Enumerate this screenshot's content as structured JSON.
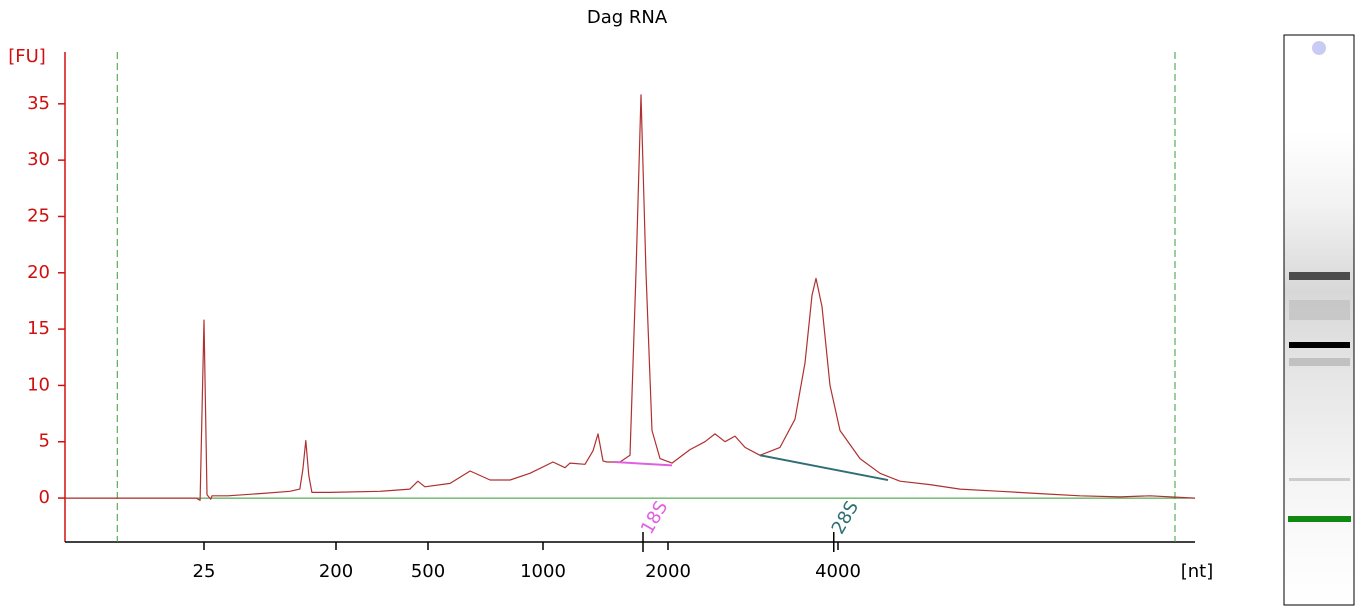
{
  "chart_data": {
    "type": "line",
    "title": "Dag RNA",
    "ylabel": "[FU]",
    "xlabel": "[nt]",
    "xlim": [
      0,
      9000
    ],
    "xticks": [
      25,
      200,
      500,
      1000,
      2000,
      4000
    ],
    "ylim": [
      -3.9,
      39.6
    ],
    "yticks": [
      0,
      5,
      10,
      15,
      20,
      25,
      30,
      35
    ],
    "range_markers": [
      9.4,
      8720
    ],
    "series": [
      {
        "color": "#b03030",
        "x": [
          0,
          9.9,
          23.6,
          24.3,
          25,
          29,
          34,
          35.6,
          56.8,
          99,
          139,
          152,
          156,
          160,
          164,
          168,
          192,
          343.5,
          441,
          467,
          490,
          596,
          683,
          770,
          857,
          943,
          1080,
          1176,
          1216,
          1336,
          1400,
          1440,
          1480,
          1512,
          1616,
          1696,
          1744,
          1784,
          1824,
          1872,
          1936,
          2047,
          2259,
          2435,
          2553,
          2671,
          2788,
          2906,
          3082,
          3318,
          3494,
          3612,
          3694,
          3741,
          3812,
          3906,
          4028,
          4308,
          4588,
          4868,
          5289,
          5709,
          6269,
          6829,
          7389,
          7950,
          8370,
          9000
        ],
        "values": [
          0,
          0,
          0,
          -0.2,
          15.8,
          0.3,
          -0.1,
          0.2,
          0.2,
          0.4,
          0.6,
          0.8,
          2.5,
          5.1,
          2.0,
          0.5,
          0.5,
          0.6,
          0.8,
          1.5,
          1.0,
          1.3,
          2.4,
          1.6,
          1.6,
          2.2,
          3.2,
          2.7,
          3.1,
          3.0,
          4.2,
          5.7,
          3.3,
          3.2,
          3.2,
          3.8,
          20,
          35.8,
          20,
          6,
          3.5,
          3.1,
          4.3,
          5.0,
          5.7,
          5.0,
          5.5,
          4.5,
          3.8,
          4.5,
          7,
          12,
          18,
          19.5,
          17,
          10,
          6,
          3.5,
          2.2,
          1.5,
          1.2,
          0.8,
          0.6,
          0.4,
          0.2,
          0.1,
          0.2,
          0
        ]
      }
    ],
    "annotations": [
      {
        "label": "18S",
        "x": 1800,
        "color": "#e060e0",
        "baseline_x": [
          1570,
          2047
        ],
        "baseline_y": [
          3.2,
          2.9
        ]
      },
      {
        "label": "28S",
        "x": 3950,
        "color": "#2f6f73",
        "baseline_x": [
          3082,
          4700
        ],
        "baseline_y": [
          3.8,
          1.6
        ]
      }
    ]
  }
}
